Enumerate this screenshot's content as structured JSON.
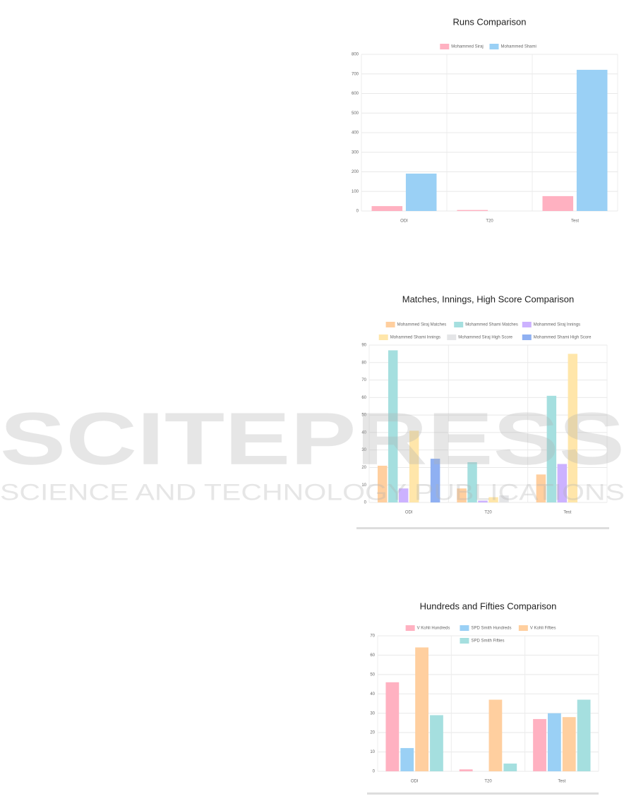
{
  "chart_data": [
    {
      "type": "bar",
      "title": "Runs Comparison",
      "categories": [
        "ODI",
        "T20",
        "Test"
      ],
      "series": [
        {
          "name": "Mohammed Siraj",
          "color": "#ffb1c1",
          "values": [
            25,
            5,
            76
          ]
        },
        {
          "name": "Mohammed Shami",
          "color": "#9ad0f5",
          "values": [
            191,
            0,
            721
          ]
        }
      ],
      "ylim": [
        0,
        800
      ],
      "yticks": [
        0,
        100,
        200,
        300,
        400,
        500,
        600,
        700,
        800
      ],
      "grid": true,
      "legend": "top"
    },
    {
      "type": "bar",
      "title": "Matches, Innings, High Score Comparison",
      "categories": [
        "ODI",
        "T20",
        "Test"
      ],
      "series": [
        {
          "name": "Mohammed Siraj Matches",
          "color": "#ffcf9f",
          "values": [
            21,
            8,
            16
          ]
        },
        {
          "name": "Mohammed Shami Matches",
          "color": "#a5dfdf",
          "values": [
            87,
            23,
            61
          ]
        },
        {
          "name": "Mohammed Siraj Innings",
          "color": "#ccb2ff",
          "values": [
            8,
            1,
            22
          ]
        },
        {
          "name": "Mohammed Shami Innings",
          "color": "#ffe6aa",
          "values": [
            41,
            3,
            85
          ]
        },
        {
          "name": "Mohammed Siraj High Score",
          "color": "#e4e5e7",
          "values": [
            0,
            4,
            0
          ]
        },
        {
          "name": "Mohammed Shami High Score",
          "color": "#8fb0f2",
          "values": [
            25,
            0,
            0
          ]
        }
      ],
      "ylim": [
        0,
        90
      ],
      "yticks": [
        0,
        10,
        20,
        30,
        40,
        50,
        60,
        70,
        80,
        90
      ],
      "grid": true,
      "legend": "top"
    },
    {
      "type": "bar",
      "title": "Hundreds and Fifties Comparison",
      "categories": [
        "ODI",
        "T20",
        "Test"
      ],
      "series": [
        {
          "name": "V Kohli Hundreds",
          "color": "#ffb1c1",
          "values": [
            46,
            1,
            27
          ]
        },
        {
          "name": "SPD Smith Hundreds",
          "color": "#9ad0f5",
          "values": [
            12,
            0,
            30
          ]
        },
        {
          "name": "V Kohli Fifties",
          "color": "#ffcf9f",
          "values": [
            64,
            37,
            28
          ]
        },
        {
          "name": "SPD Smith Fifties",
          "color": "#a5dfdf",
          "values": [
            29,
            4,
            37
          ]
        }
      ],
      "ylim": [
        0,
        70
      ],
      "yticks": [
        0,
        10,
        20,
        30,
        40,
        50,
        60,
        70
      ],
      "grid": true,
      "legend": "top"
    }
  ],
  "watermark": {
    "title": "SCITEPRESS",
    "subtitle": "SCIENCE AND TECHNOLOGY PUBLICATIONS"
  }
}
